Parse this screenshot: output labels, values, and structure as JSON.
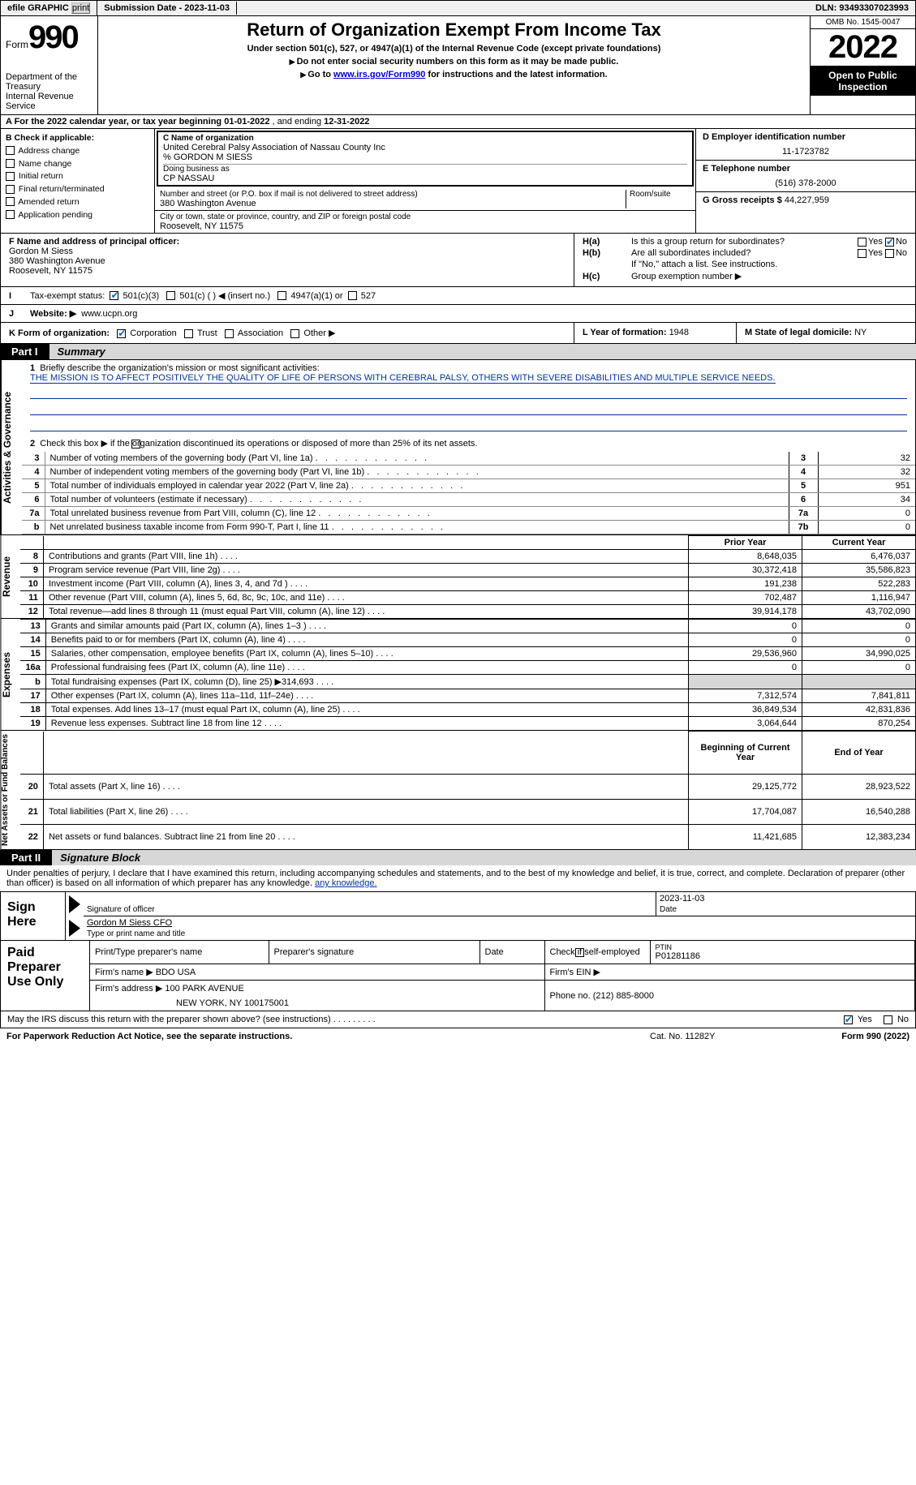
{
  "topbar": {
    "efile": "efile GRAPHIC",
    "print": "print",
    "sub_label": "Submission Date - ",
    "sub_date": "2023-11-03",
    "dln_label": "DLN: ",
    "dln": "93493307023993"
  },
  "header": {
    "form_word": "Form",
    "form_num": "990",
    "dept": "Department of the Treasury\nInternal Revenue Service",
    "title": "Return of Organization Exempt From Income Tax",
    "sub1": "Under section 501(c), 527, or 4947(a)(1) of the Internal Revenue Code (except private foundations)",
    "sub2": "Do not enter social security numbers on this form as it may be made public.",
    "sub3_a": "Go to ",
    "sub3_link": "www.irs.gov/Form990",
    "sub3_b": " for instructions and the latest information.",
    "omb": "OMB No. 1545-0047",
    "year": "2022",
    "open": "Open to Public Inspection"
  },
  "row_a": {
    "text": "A For the 2022 calendar year, or tax year beginning ",
    "begin": "01-01-2022",
    "mid": "   , and ending ",
    "end": "12-31-2022"
  },
  "col_b": {
    "title": "B Check if applicable:",
    "items": [
      "Address change",
      "Name change",
      "Initial return",
      "Final return/terminated",
      "Amended return",
      "Application pending"
    ]
  },
  "col_c": {
    "name_label": "C Name of organization",
    "name": "United Cerebral Palsy Association of Nassau County Inc",
    "care_of": "% GORDON M SIESS",
    "dba_label": "Doing business as",
    "dba": "CP NASSAU",
    "addr_label": "Number and street (or P.O. box if mail is not delivered to street address)",
    "room_label": "Room/suite",
    "addr": "380 Washington Avenue",
    "city_label": "City or town, state or province, country, and ZIP or foreign postal code",
    "city": "Roosevelt, NY  11575"
  },
  "col_d": {
    "ein_label": "D Employer identification number",
    "ein": "11-1723782",
    "phone_label": "E Telephone number",
    "phone": "(516) 378-2000",
    "gross_label": "G Gross receipts $ ",
    "gross": "44,227,959"
  },
  "col_f": {
    "label": "F Name and address of principal officer:",
    "name": "Gordon M Siess",
    "addr": "380 Washington Avenue",
    "city": "Roosevelt, NY  11575"
  },
  "col_h": {
    "ha": "Is this a group return for subordinates?",
    "hb": "Are all subordinates included?",
    "hb_note": "If \"No,\" attach a list. See instructions.",
    "hc": "Group exemption number ▶",
    "yes": "Yes",
    "no": "No"
  },
  "row_i": {
    "label": "Tax-exempt status:",
    "opt1": "501(c)(3)",
    "opt2": "501(c) (  ) ◀ (insert no.)",
    "opt3": "4947(a)(1) or",
    "opt4": "527"
  },
  "row_j": {
    "label": "Website: ▶",
    "val": "www.ucpn.org"
  },
  "row_k": {
    "label": "K Form of organization:",
    "opts": [
      "Corporation",
      "Trust",
      "Association",
      "Other ▶"
    ],
    "l_label": "L Year of formation: ",
    "l_val": "1948",
    "m_label": "M State of legal domicile: ",
    "m_val": "NY"
  },
  "part1": {
    "num": "Part I",
    "title": "Summary"
  },
  "mission": {
    "num": "1",
    "label": "Briefly describe the organization's mission or most significant activities:",
    "text": "THE MISSION IS TO AFFECT POSITIVELY THE QUALITY OF LIFE OF PERSONS WITH CEREBRAL PALSY, OTHERS WITH SEVERE DISABILITIES AND MULTIPLE SERVICE NEEDS."
  },
  "line2": {
    "num": "2",
    "text": "Check this box ▶        if the organization discontinued its operations or disposed of more than 25% of its net assets."
  },
  "governance_rows": [
    {
      "n": "3",
      "label": "Number of voting members of the governing body (Part VI, line 1a)",
      "key": "3",
      "val": "32"
    },
    {
      "n": "4",
      "label": "Number of independent voting members of the governing body (Part VI, line 1b)",
      "key": "4",
      "val": "32"
    },
    {
      "n": "5",
      "label": "Total number of individuals employed in calendar year 2022 (Part V, line 2a)",
      "key": "5",
      "val": "951"
    },
    {
      "n": "6",
      "label": "Total number of volunteers (estimate if necessary)",
      "key": "6",
      "val": "34"
    },
    {
      "n": "7a",
      "label": "Total unrelated business revenue from Part VIII, column (C), line 12",
      "key": "7a",
      "val": "0"
    },
    {
      "n": "b",
      "label": "Net unrelated business taxable income from Form 990-T, Part I, line 11",
      "key": "7b",
      "val": "0"
    }
  ],
  "headers_pc": {
    "prior": "Prior Year",
    "curr": "Current Year"
  },
  "revenue_rows": [
    {
      "n": "8",
      "label": "Contributions and grants (Part VIII, line 1h)",
      "p": "8,648,035",
      "c": "6,476,037"
    },
    {
      "n": "9",
      "label": "Program service revenue (Part VIII, line 2g)",
      "p": "30,372,418",
      "c": "35,586,823"
    },
    {
      "n": "10",
      "label": "Investment income (Part VIII, column (A), lines 3, 4, and 7d )",
      "p": "191,238",
      "c": "522,283"
    },
    {
      "n": "11",
      "label": "Other revenue (Part VIII, column (A), lines 5, 6d, 8c, 9c, 10c, and 11e)",
      "p": "702,487",
      "c": "1,116,947"
    },
    {
      "n": "12",
      "label": "Total revenue—add lines 8 through 11 (must equal Part VIII, column (A), line 12)",
      "p": "39,914,178",
      "c": "43,702,090"
    }
  ],
  "expense_rows": [
    {
      "n": "13",
      "label": "Grants and similar amounts paid (Part IX, column (A), lines 1–3 )",
      "p": "0",
      "c": "0"
    },
    {
      "n": "14",
      "label": "Benefits paid to or for members (Part IX, column (A), line 4)",
      "p": "0",
      "c": "0"
    },
    {
      "n": "15",
      "label": "Salaries, other compensation, employee benefits (Part IX, column (A), lines 5–10)",
      "p": "29,536,960",
      "c": "34,990,025"
    },
    {
      "n": "16a",
      "label": "Professional fundraising fees (Part IX, column (A), line 11e)",
      "p": "0",
      "c": "0"
    },
    {
      "n": "b",
      "label": "Total fundraising expenses (Part IX, column (D), line 25) ▶314,693",
      "p": "",
      "c": "",
      "shade": true
    },
    {
      "n": "17",
      "label": "Other expenses (Part IX, column (A), lines 11a–11d, 11f–24e)",
      "p": "7,312,574",
      "c": "7,841,811"
    },
    {
      "n": "18",
      "label": "Total expenses. Add lines 13–17 (must equal Part IX, column (A), line 25)",
      "p": "36,849,534",
      "c": "42,831,836"
    },
    {
      "n": "19",
      "label": "Revenue less expenses. Subtract line 18 from line 12",
      "p": "3,064,644",
      "c": "870,254"
    }
  ],
  "headers_na": {
    "prior": "Beginning of Current Year",
    "curr": "End of Year"
  },
  "netassets_rows": [
    {
      "n": "20",
      "label": "Total assets (Part X, line 16)",
      "p": "29,125,772",
      "c": "28,923,522"
    },
    {
      "n": "21",
      "label": "Total liabilities (Part X, line 26)",
      "p": "17,704,087",
      "c": "16,540,288"
    },
    {
      "n": "22",
      "label": "Net assets or fund balances. Subtract line 21 from line 20",
      "p": "11,421,685",
      "c": "12,383,234"
    }
  ],
  "side_labels": {
    "gov": "Activities & Governance",
    "rev": "Revenue",
    "exp": "Expenses",
    "na": "Net Assets or Fund Balances"
  },
  "part2": {
    "num": "Part II",
    "title": "Signature Block"
  },
  "penalty": "Under penalties of perjury, I declare that I have examined this return, including accompanying schedules and statements, and to the best of my knowledge and belief, it is true, correct, and complete. Declaration of preparer (other than officer) is based on all information of which preparer has any knowledge.",
  "sign": {
    "here": "Sign Here",
    "sig_of_officer": "Signature of officer",
    "date_label": "Date",
    "date": "2023-11-03",
    "name": "Gordon M Siess  CFO",
    "name_label": "Type or print name and title"
  },
  "paid": {
    "title": "Paid Preparer Use Only",
    "h_name": "Print/Type preparer's name",
    "h_sig": "Preparer's signature",
    "h_date": "Date",
    "h_check": "Check         if self-employed",
    "h_ptin_label": "PTIN",
    "ptin": "P01281186",
    "firm_name_label": "Firm's name    ▶ ",
    "firm_name": "BDO USA",
    "firm_ein_label": "Firm's EIN ▶",
    "firm_addr_label": "Firm's address ▶ ",
    "firm_addr1": "100 PARK AVENUE",
    "firm_addr2": "NEW YORK, NY  100175001",
    "phone_label": "Phone no. ",
    "phone": "(212) 885-8000"
  },
  "may_irs": {
    "q": "May the IRS discuss this return with the preparer shown above? (see instructions)",
    "yes": "Yes",
    "no": "No"
  },
  "footer": {
    "left": "For Paperwork Reduction Act Notice, see the separate instructions.",
    "mid": "Cat. No. 11282Y",
    "right": "Form 990 (2022)"
  }
}
